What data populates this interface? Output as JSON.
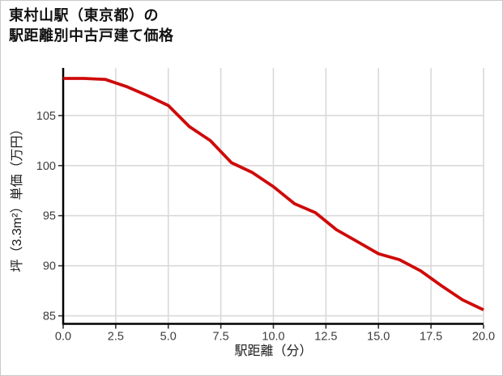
{
  "card": {
    "background": "#ffffff",
    "border_color": "#c9c9c9"
  },
  "title": {
    "line1": "東村山駅（東京都）の",
    "line2": "駅距離別中古戸建て価格"
  },
  "chart_data": {
    "type": "line",
    "title": "東村山駅（東京都）の駅距離別中古戸建て価格",
    "xlabel": "駅距離（分）",
    "ylabel": "坪（3.3m²）単価（万円）",
    "x": [
      0,
      1,
      2,
      3,
      4,
      5,
      6,
      7,
      8,
      9,
      10,
      11,
      12,
      13,
      14,
      15,
      16,
      17,
      18,
      19,
      20
    ],
    "values": [
      108.7,
      108.7,
      108.6,
      107.9,
      107.0,
      106.0,
      103.9,
      102.5,
      100.3,
      99.3,
      97.9,
      96.2,
      95.3,
      93.6,
      92.4,
      91.2,
      90.6,
      89.5,
      88.0,
      86.6,
      85.6
    ],
    "x_ticks": [
      0,
      2.5,
      5,
      7.5,
      10,
      12.5,
      15,
      17.5,
      20
    ],
    "x_tick_labels": [
      "0.0",
      "2.5",
      "5.0",
      "7.5",
      "10.0",
      "12.5",
      "15.0",
      "17.5",
      "20.0"
    ],
    "y_ticks": [
      85,
      90,
      95,
      100,
      105
    ],
    "y_tick_labels": [
      "85",
      "90",
      "95",
      "100",
      "105"
    ],
    "xlim": [
      0,
      20
    ],
    "ylim": [
      84.2,
      109.75
    ],
    "grid": true,
    "legend": "none",
    "line_color": "#cf0a0a",
    "line_width": 3.8,
    "grid_color": "#d9d9d9",
    "axis_color": "#000000",
    "tick_label_color": "#3d3d3d"
  }
}
